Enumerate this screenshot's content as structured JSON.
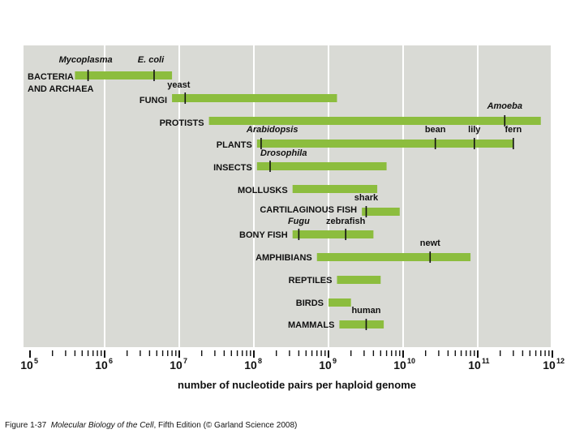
{
  "chart_data": {
    "type": "bar",
    "orientation": "horizontal-range",
    "xscale": "log",
    "xlim": [
      100000,
      1000000000000
    ],
    "xlabel": "number of nucleotide pairs per haploid genome",
    "xticks": [
      {
        "base": "10",
        "exp": "5"
      },
      {
        "base": "10",
        "exp": "6"
      },
      {
        "base": "10",
        "exp": "7"
      },
      {
        "base": "10",
        "exp": "8"
      },
      {
        "base": "10",
        "exp": "9"
      },
      {
        "base": "10",
        "exp": "10"
      },
      {
        "base": "10",
        "exp": "11"
      },
      {
        "base": "10",
        "exp": "12"
      }
    ],
    "grid": true,
    "bar_color": "#8cbd3e",
    "panel_color": "#d9dad5",
    "groups": [
      {
        "label_lines": [
          "BACTERIA",
          "AND ARCHAEA"
        ],
        "range": [
          400000,
          8000000
        ],
        "markers": [
          {
            "name": "Mycoplasma",
            "value": 600000,
            "italic": true
          },
          {
            "name": "E. coli",
            "value": 4600000,
            "italic": true
          }
        ]
      },
      {
        "label_lines": [
          "FUNGI"
        ],
        "range": [
          8000000,
          1300000000
        ],
        "markers": [
          {
            "name": "yeast",
            "value": 12000000,
            "italic": false
          }
        ]
      },
      {
        "label_lines": [
          "PROTISTS"
        ],
        "range": [
          25000000,
          700000000000
        ],
        "markers": [
          {
            "name": "Amoeba",
            "value": 230000000000,
            "italic": true
          }
        ]
      },
      {
        "label_lines": [
          "PLANTS"
        ],
        "range": [
          110000000,
          300000000000
        ],
        "markers": [
          {
            "name": "Arabidopsis",
            "value": 125000000,
            "italic": true
          },
          {
            "name": "bean",
            "value": 27000000000,
            "italic": false
          },
          {
            "name": "lily",
            "value": 90000000000,
            "italic": false
          },
          {
            "name": "fern",
            "value": 300000000000,
            "italic": false
          }
        ]
      },
      {
        "label_lines": [
          "INSECTS"
        ],
        "range": [
          110000000,
          6000000000
        ],
        "markers": [
          {
            "name": "Drosophila",
            "value": 165000000,
            "italic": true
          }
        ]
      },
      {
        "label_lines": [
          "MOLLUSKS"
        ],
        "range": [
          330000000,
          4500000000
        ],
        "markers": []
      },
      {
        "label_lines": [
          "CARTILAGINOUS FISH"
        ],
        "range": [
          2800000000,
          9000000000
        ],
        "markers": [
          {
            "name": "shark",
            "value": 3200000000,
            "italic": false
          }
        ]
      },
      {
        "label_lines": [
          "BONY FISH"
        ],
        "range": [
          330000000,
          4000000000
        ],
        "markers": [
          {
            "name": "Fugu",
            "value": 400000000,
            "italic": true
          },
          {
            "name": "zebrafish",
            "value": 1700000000,
            "italic": false
          }
        ]
      },
      {
        "label_lines": [
          "AMPHIBIANS"
        ],
        "range": [
          700000000,
          80000000000
        ],
        "markers": [
          {
            "name": "newt",
            "value": 23000000000,
            "italic": false
          }
        ]
      },
      {
        "label_lines": [
          "REPTILES"
        ],
        "range": [
          1300000000,
          5000000000
        ],
        "markers": []
      },
      {
        "label_lines": [
          "BIRDS"
        ],
        "range": [
          1000000000,
          2000000000
        ],
        "markers": []
      },
      {
        "label_lines": [
          "MAMMALS"
        ],
        "range": [
          1400000000,
          5500000000
        ],
        "markers": [
          {
            "name": "human",
            "value": 3200000000,
            "italic": false
          }
        ]
      }
    ]
  },
  "caption": {
    "prefix": "Figure 1-37",
    "book": "Molecular Biology of the Cell",
    "suffix": ", Fifth Edition (© Garland Science 2008)"
  }
}
